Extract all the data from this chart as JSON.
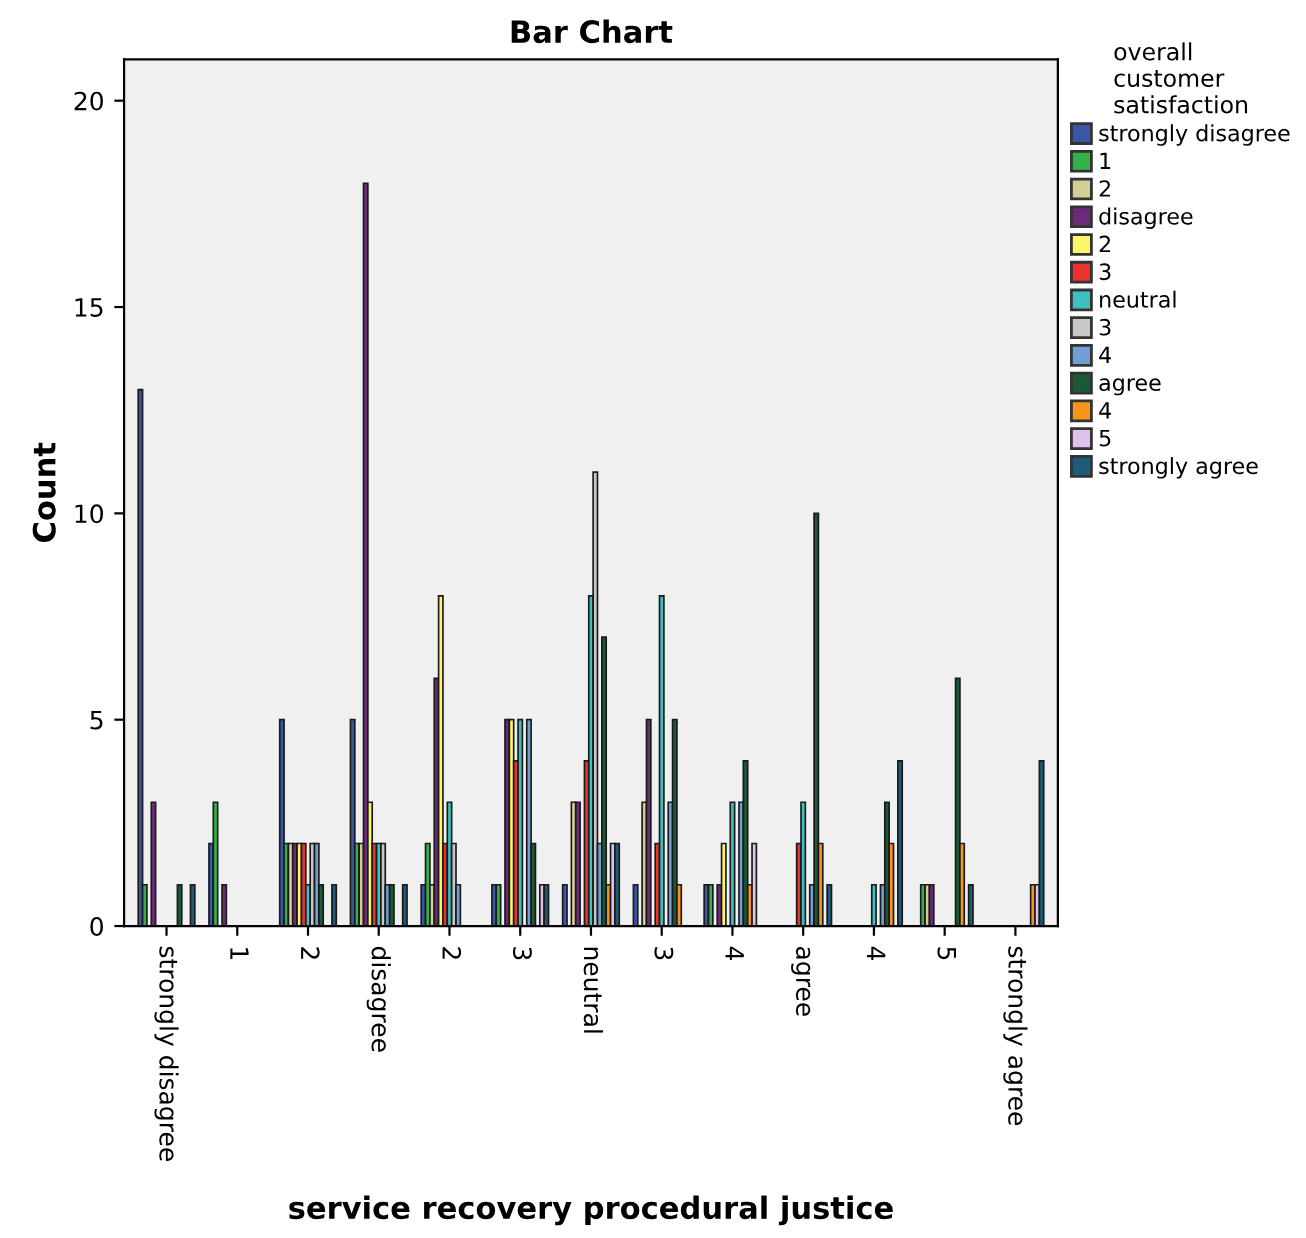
{
  "chart_data": {
    "type": "bar",
    "title": "Bar Chart",
    "xlabel": "service recovery procedural justice",
    "ylabel": "Count",
    "legend_title": "overall\ncustomer\nsatisfaction",
    "categories": [
      "strongly disagree",
      "1",
      "2",
      "disagree",
      "2",
      "3",
      "neutral",
      "3",
      "4",
      "agree",
      "4",
      "5",
      "strongly agree"
    ],
    "series": [
      {
        "name": "strongly disagree",
        "color": "#3a56a6",
        "values": [
          13,
          2,
          5,
          5,
          1,
          1,
          1,
          1,
          1,
          null,
          null,
          null,
          null
        ]
      },
      {
        "name": "1",
        "color": "#33b24b",
        "values": [
          1,
          3,
          2,
          2,
          2,
          1,
          null,
          null,
          1,
          null,
          null,
          1,
          null
        ]
      },
      {
        "name": "2",
        "color": "#d6cc95",
        "values": [
          null,
          null,
          2,
          2,
          1,
          null,
          3,
          3,
          null,
          null,
          null,
          1,
          null
        ]
      },
      {
        "name": "disagree",
        "color": "#6b2a7a",
        "values": [
          3,
          1,
          2,
          18,
          6,
          5,
          3,
          5,
          1,
          null,
          null,
          1,
          null
        ]
      },
      {
        "name": "2",
        "color": "#fbf56a",
        "values": [
          null,
          null,
          2,
          3,
          8,
          5,
          null,
          null,
          2,
          null,
          null,
          null,
          null
        ]
      },
      {
        "name": "3",
        "color": "#e8332e",
        "values": [
          null,
          null,
          2,
          2,
          2,
          4,
          4,
          2,
          null,
          2,
          null,
          null,
          null
        ]
      },
      {
        "name": "neutral",
        "color": "#3fbfbf",
        "values": [
          null,
          null,
          1,
          2,
          3,
          5,
          8,
          8,
          3,
          3,
          1,
          null,
          null
        ]
      },
      {
        "name": "3",
        "color": "#c8c8c8",
        "values": [
          null,
          null,
          2,
          2,
          2,
          null,
          11,
          null,
          null,
          null,
          null,
          null,
          null
        ]
      },
      {
        "name": "4",
        "color": "#6f9fd3",
        "values": [
          null,
          null,
          2,
          1,
          1,
          5,
          2,
          3,
          3,
          1,
          1,
          null,
          null
        ]
      },
      {
        "name": "agree",
        "color": "#1b5a35",
        "values": [
          1,
          null,
          1,
          1,
          null,
          2,
          7,
          5,
          4,
          10,
          3,
          6,
          null
        ]
      },
      {
        "name": "4",
        "color": "#f7941d",
        "values": [
          null,
          null,
          null,
          null,
          null,
          null,
          1,
          1,
          1,
          2,
          2,
          2,
          1
        ]
      },
      {
        "name": "5",
        "color": "#ddc3ec",
        "values": [
          null,
          null,
          null,
          null,
          null,
          1,
          2,
          null,
          2,
          null,
          null,
          null,
          1
        ]
      },
      {
        "name": "strongly agree",
        "color": "#1f5a78",
        "values": [
          1,
          null,
          1,
          1,
          null,
          1,
          2,
          null,
          null,
          1,
          4,
          1,
          4
        ]
      }
    ],
    "ylim": [
      0,
      21
    ],
    "yticks": [
      0,
      5,
      10,
      15,
      20
    ],
    "grid": false,
    "legend": "right"
  }
}
